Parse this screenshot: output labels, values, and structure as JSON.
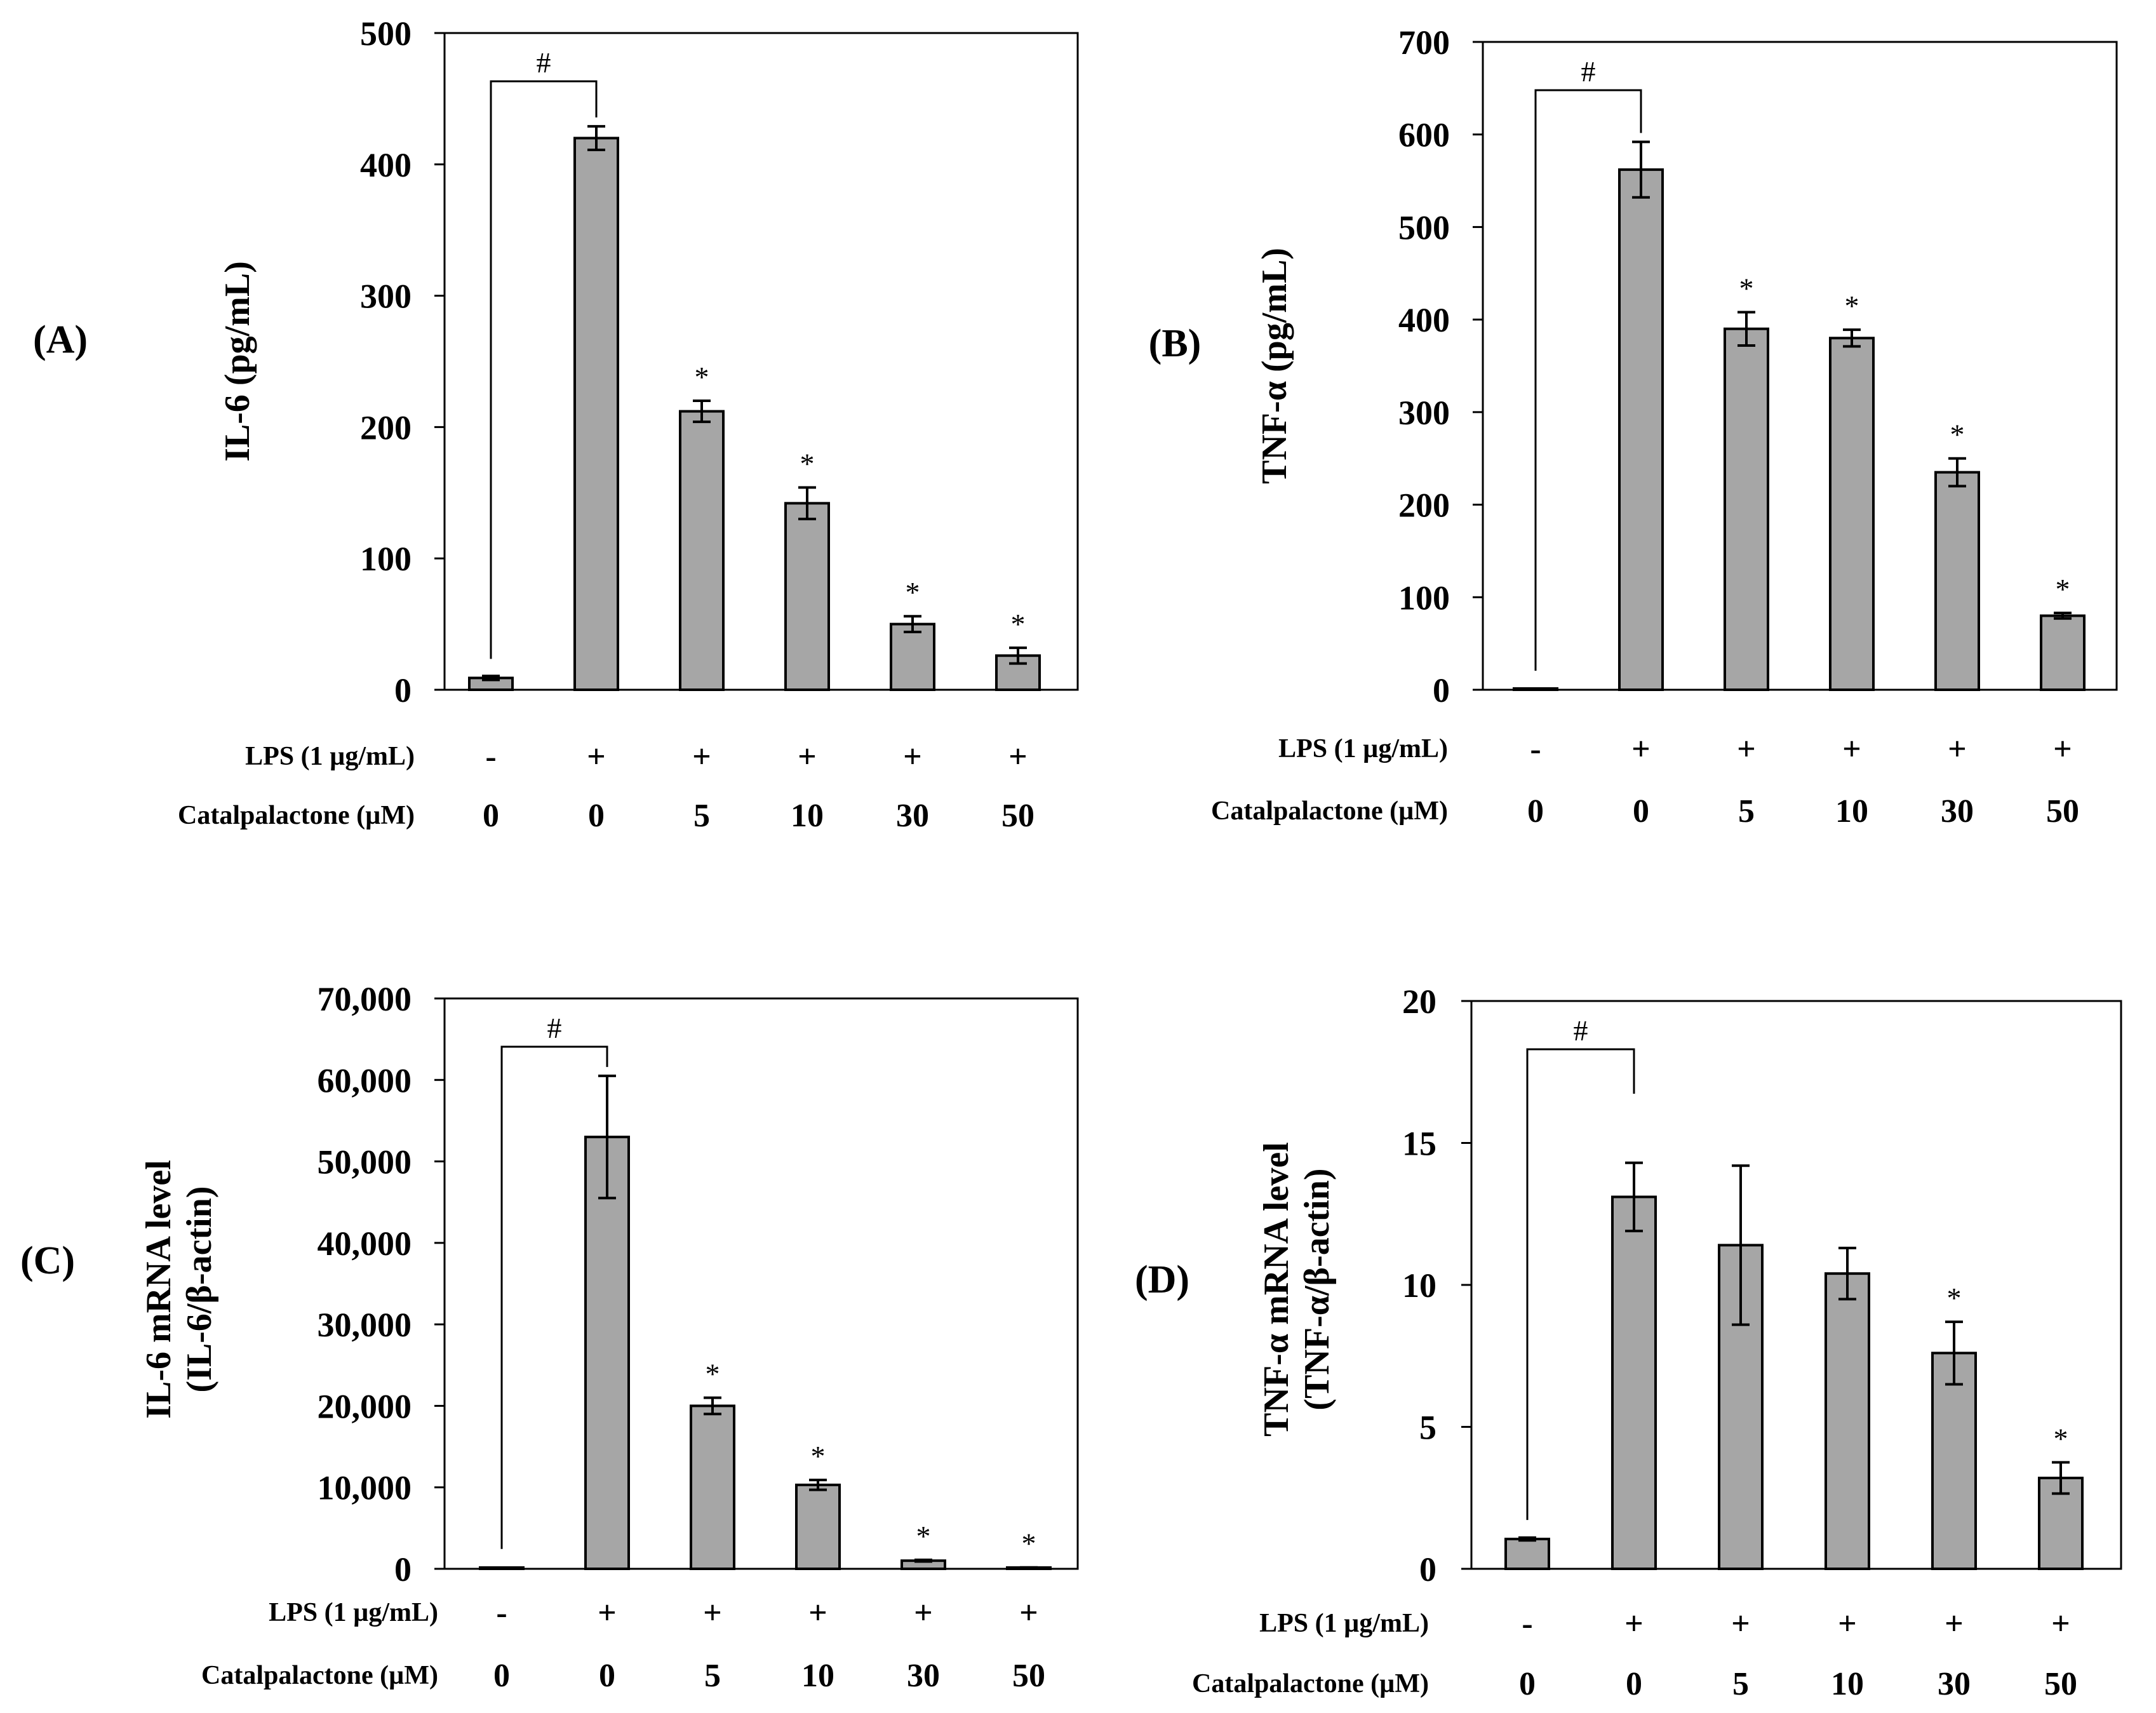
{
  "colors": {
    "bar": "#a6a6a6",
    "stroke": "#000000",
    "background": "#ffffff"
  },
  "row_labels": {
    "lps": "LPS (1 µg/mL)",
    "catalpalactone": "Catalpalactone (µM)"
  },
  "panels": {
    "A": {
      "panel_label": "(A)",
      "ylabel_lines": [
        "IL-6 (pg/mL)"
      ],
      "ticks": [
        "0",
        "100",
        "200",
        "300",
        "400",
        "500"
      ],
      "lps": [
        "-",
        "+",
        "+",
        "+",
        "+",
        "+"
      ],
      "conc": [
        "0",
        "0",
        "5",
        "10",
        "30",
        "50"
      ],
      "hash": "#"
    },
    "B": {
      "panel_label": "(B)",
      "ylabel_lines": [
        "TNF-α (pg/mL)"
      ],
      "ticks": [
        "0",
        "100",
        "200",
        "300",
        "400",
        "500",
        "600",
        "700"
      ],
      "lps": [
        "-",
        "+",
        "+",
        "+",
        "+",
        "+"
      ],
      "conc": [
        "0",
        "0",
        "5",
        "10",
        "30",
        "50"
      ],
      "hash": "#"
    },
    "C": {
      "panel_label": "(C)",
      "ylabel_lines": [
        "IL-6 mRNA level",
        "(IL-6/β-actin)"
      ],
      "ticks": [
        "0",
        "10,000",
        "20,000",
        "30,000",
        "40,000",
        "50,000",
        "60,000",
        "70,000"
      ],
      "lps": [
        "-",
        "+",
        "+",
        "+",
        "+",
        "+"
      ],
      "conc": [
        "0",
        "0",
        "5",
        "10",
        "30",
        "50"
      ],
      "hash": "#"
    },
    "D": {
      "panel_label": "(D)",
      "ylabel_lines": [
        "TNF-α mRNA level",
        "(TNF-α/β-actin)"
      ],
      "ticks": [
        "0",
        "5",
        "10",
        "15",
        "20"
      ],
      "lps": [
        "-",
        "+",
        "+",
        "+",
        "+",
        "+"
      ],
      "conc": [
        "0",
        "0",
        "5",
        "10",
        "30",
        "50"
      ],
      "hash": "#"
    }
  },
  "chart_data": [
    {
      "id": "A",
      "type": "bar",
      "title": "",
      "xlabel": "",
      "ylabel": "IL-6 (pg/mL)",
      "ylim": [
        0,
        500
      ],
      "categories": [
        "LPS - / 0 µM",
        "LPS + / 0 µM",
        "LPS + / 5 µM",
        "LPS + / 10 µM",
        "LPS + / 30 µM",
        "LPS + / 50 µM"
      ],
      "values": [
        9,
        420,
        212,
        142,
        50,
        26
      ],
      "errors": [
        1.5,
        9,
        8,
        12,
        6,
        6
      ],
      "stars": [
        "",
        "",
        "*",
        "*",
        "*",
        "*"
      ],
      "bracket": {
        "from": 0,
        "to": 1,
        "label": "#"
      }
    },
    {
      "id": "B",
      "type": "bar",
      "title": "",
      "xlabel": "",
      "ylabel": "TNF-α (pg/mL)",
      "ylim": [
        0,
        700
      ],
      "categories": [
        "LPS - / 0 µM",
        "LPS + / 0 µM",
        "LPS + / 5 µM",
        "LPS + / 10 µM",
        "LPS + / 30 µM",
        "LPS + / 50 µM"
      ],
      "values": [
        0,
        562,
        390,
        380,
        235,
        80
      ],
      "errors": [
        0,
        30,
        18,
        9,
        15,
        3
      ],
      "stars": [
        "",
        "",
        "*",
        "*",
        "*",
        "*"
      ],
      "bracket": {
        "from": 0,
        "to": 1,
        "label": "#"
      }
    },
    {
      "id": "C",
      "type": "bar",
      "title": "",
      "xlabel": "",
      "ylabel": "IL-6 mRNA level (IL-6/β-actin)",
      "ylim": [
        0,
        70000
      ],
      "categories": [
        "LPS - / 0 µM",
        "LPS + / 0 µM",
        "LPS + / 5 µM",
        "LPS + / 10 µM",
        "LPS + / 30 µM",
        "LPS + / 50 µM"
      ],
      "values": [
        100,
        53000,
        20000,
        10300,
        1000,
        150
      ],
      "errors": [
        0,
        7500,
        1000,
        600,
        100,
        30
      ],
      "stars": [
        "",
        "",
        "*",
        "*",
        "*",
        "*"
      ],
      "bracket": {
        "from": 0,
        "to": 1,
        "label": "#"
      }
    },
    {
      "id": "D",
      "type": "bar",
      "title": "",
      "xlabel": "",
      "ylabel": "TNF-α mRNA level (TNF-α/β-actin)",
      "ylim": [
        0,
        20
      ],
      "categories": [
        "LPS - / 0 µM",
        "LPS + / 0 µM",
        "LPS + / 5 µM",
        "LPS + / 10 µM",
        "LPS + / 30 µM",
        "LPS + / 50 µM"
      ],
      "values": [
        1.05,
        13.1,
        11.4,
        10.4,
        7.6,
        3.2
      ],
      "errors": [
        0.05,
        1.2,
        2.8,
        0.9,
        1.1,
        0.55
      ],
      "stars": [
        "",
        "",
        "",
        "",
        "*",
        "*"
      ],
      "bracket": {
        "from": 0,
        "to": 1,
        "label": "#"
      }
    }
  ]
}
